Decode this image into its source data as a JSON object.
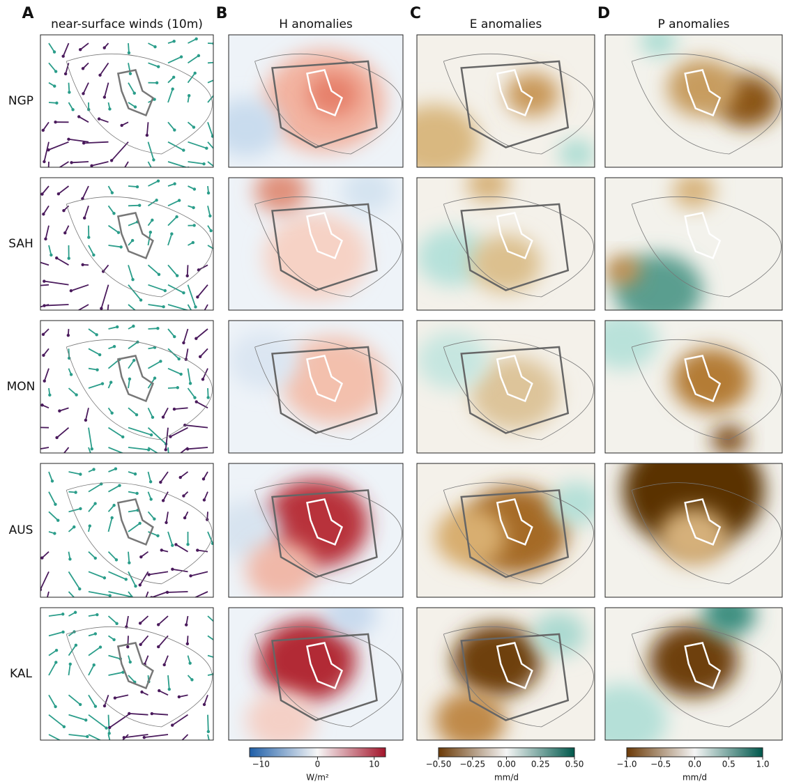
{
  "panels": [
    {
      "letter": "A",
      "title": "near-surface winds (10m)"
    },
    {
      "letter": "B",
      "title": "H anomalies"
    },
    {
      "letter": "C",
      "title": "E anomalies"
    },
    {
      "letter": "D",
      "title": "P anomalies"
    }
  ],
  "rows": [
    "NGP",
    "SAH",
    "MON",
    "AUS",
    "KAL"
  ],
  "colorbars": [
    {
      "unit": "W/m²",
      "lim": [
        -12,
        12
      ],
      "colors": [
        "#1f5fa8",
        "#f7f7f7",
        "#a3152b"
      ],
      "ticks": [
        {
          "value": -10,
          "label": "−10"
        },
        0,
        10
      ]
    },
    {
      "unit": "mm/d",
      "lim": [
        -0.5,
        0.5
      ],
      "colors": [
        "#6b3a07",
        "#f5f5f5",
        "#00584c"
      ],
      "ticks": [
        {
          "value": -0.5,
          "label": "−0.50"
        },
        {
          "value": -0.25,
          "label": "−0.25"
        },
        {
          "value": 0,
          "label": "0.00"
        },
        {
          "value": 0.25,
          "label": "0.25"
        },
        {
          "value": 0.5,
          "label": "0.50"
        }
      ]
    },
    {
      "unit": "mm/d",
      "lim": [
        -1,
        1
      ],
      "colors": [
        "#6b3a07",
        "#f5f5f5",
        "#00584c"
      ],
      "ticks": [
        {
          "value": -1,
          "label": "−1.0"
        },
        {
          "value": -0.5,
          "label": "−0.5"
        },
        {
          "value": 0,
          "label": "0.0"
        },
        {
          "value": 0.5,
          "label": "0.5"
        },
        {
          "value": 1,
          "label": "1.0"
        }
      ]
    }
  ]
}
